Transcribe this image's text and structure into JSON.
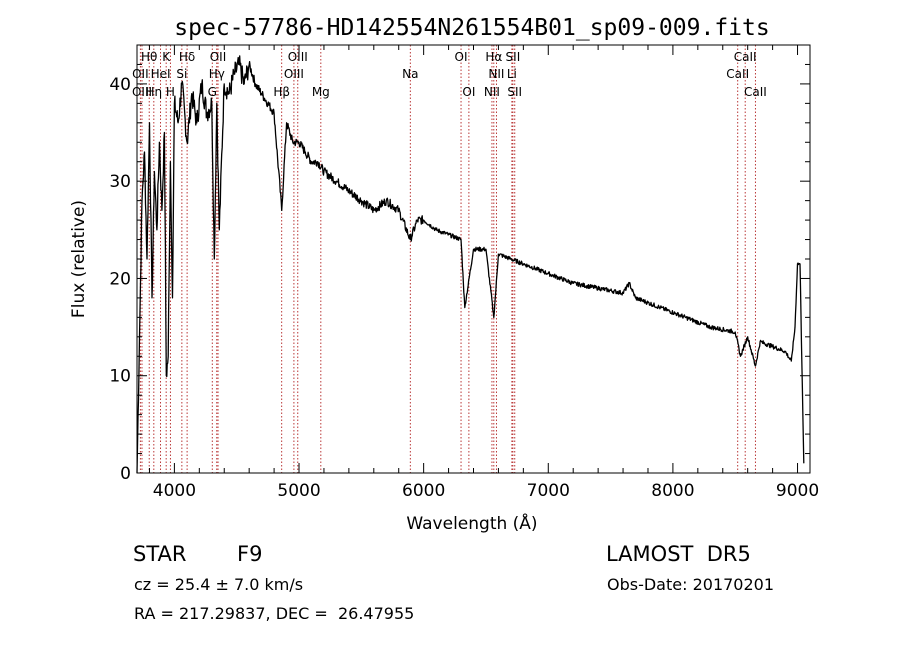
{
  "chart_data": {
    "type": "line",
    "title": "spec-57786-HD142554N261554B01_sp09-009.fits",
    "xlabel": "Wavelength (Å)",
    "ylabel": "Flux (relative)",
    "xlim": [
      3700,
      9100
    ],
    "ylim": [
      0,
      44
    ],
    "xticks": [
      4000,
      5000,
      6000,
      7000,
      8000,
      9000
    ],
    "yticks": [
      0,
      10,
      20,
      30,
      40
    ],
    "grid": false,
    "line_color": "#000000",
    "marker_color": "#b22222",
    "series": [
      {
        "x": [
          3700,
          3720,
          3740,
          3760,
          3780,
          3800,
          3820,
          3840,
          3860,
          3880,
          3900,
          3920,
          3935,
          3950,
          3968,
          3985,
          4000,
          4030,
          4060,
          4102,
          4140,
          4180,
          4220,
          4260,
          4300,
          4320,
          4340,
          4360,
          4400,
          4440,
          4480,
          4520,
          4560,
          4600,
          4650,
          4700,
          4750,
          4800,
          4861,
          4900,
          4950,
          5000,
          5050,
          5100,
          5150,
          5200,
          5300,
          5400,
          5500,
          5600,
          5700,
          5800,
          5893,
          5950,
          6000,
          6100,
          6200,
          6300,
          6330,
          6400,
          6500,
          6563,
          6600,
          6700,
          6800,
          7000,
          7200,
          7400,
          7600,
          7650,
          7700,
          7900,
          8100,
          8300,
          8500,
          8542,
          8600,
          8662,
          8700,
          8800,
          8900,
          8950,
          8980,
          9000,
          9020,
          9050
        ],
        "y": [
          0,
          14,
          28,
          33,
          22,
          36,
          18,
          31,
          25,
          34,
          27,
          35,
          10,
          12,
          32,
          18,
          38,
          36,
          40,
          34,
          39,
          36,
          40,
          37,
          38,
          22,
          38,
          25,
          40,
          39,
          41,
          42,
          40,
          42,
          40,
          39,
          38,
          37,
          27,
          36,
          34,
          34,
          33,
          32,
          32,
          31,
          30,
          29,
          28,
          27,
          28,
          27,
          24,
          26,
          26,
          25,
          24.5,
          24,
          17,
          23,
          23,
          16,
          22.5,
          22,
          21.5,
          20.5,
          19.5,
          19,
          18.5,
          19.5,
          18,
          17,
          16,
          15,
          14.5,
          12,
          14,
          11,
          13.5,
          13,
          12.5,
          11.5,
          15,
          21.5,
          21.5,
          1
        ]
      }
    ],
    "line_markers": [
      {
        "label": "Hθ",
        "x": 3798,
        "row": 0
      },
      {
        "label": "K",
        "x": 3934,
        "row": 0
      },
      {
        "label": "Hδ",
        "x": 4102,
        "row": 0
      },
      {
        "label": "OII",
        "x": 4350,
        "row": 0
      },
      {
        "label": "OIII",
        "x": 4990,
        "row": 0
      },
      {
        "label": "OI",
        "x": 6300,
        "row": 0
      },
      {
        "label": "Hα",
        "x": 6563,
        "row": 0
      },
      {
        "label": "SII",
        "x": 6716,
        "row": 0
      },
      {
        "label": "CaII",
        "x": 8580,
        "row": 0
      },
      {
        "label": "OII",
        "x": 3727,
        "row": 1
      },
      {
        "label": "HeI",
        "x": 3889,
        "row": 1
      },
      {
        "label": "Si",
        "x": 4060,
        "row": 1
      },
      {
        "label": "Hγ",
        "x": 4340,
        "row": 1
      },
      {
        "label": "OIII",
        "x": 4959,
        "row": 1
      },
      {
        "label": "Na",
        "x": 5893,
        "row": 1
      },
      {
        "label": "NII",
        "x": 6584,
        "row": 1
      },
      {
        "label": "Li",
        "x": 6708,
        "row": 1
      },
      {
        "label": "CaII",
        "x": 8520,
        "row": 1
      },
      {
        "label": "OIII",
        "x": 3740,
        "row": 2
      },
      {
        "label": "Hη",
        "x": 3835,
        "row": 2
      },
      {
        "label": "H",
        "x": 3968,
        "row": 2
      },
      {
        "label": "G",
        "x": 4304,
        "row": 2
      },
      {
        "label": "Hβ",
        "x": 4861,
        "row": 2
      },
      {
        "label": "Mg",
        "x": 5175,
        "row": 2
      },
      {
        "label": "OI",
        "x": 6363,
        "row": 2
      },
      {
        "label": "NII",
        "x": 6548,
        "row": 2
      },
      {
        "label": "SII",
        "x": 6731,
        "row": 2
      },
      {
        "label": "CaII",
        "x": 8662,
        "row": 2
      }
    ]
  },
  "info": {
    "object_class": "STAR",
    "subclass": "F9",
    "survey": "LAMOST  DR5",
    "redshift": "cz = 25.4 ± 7.0 km/s",
    "obs_date": "Obs-Date: 20170201",
    "coordinates": "RA = 217.29837, DEC =  26.47955"
  }
}
